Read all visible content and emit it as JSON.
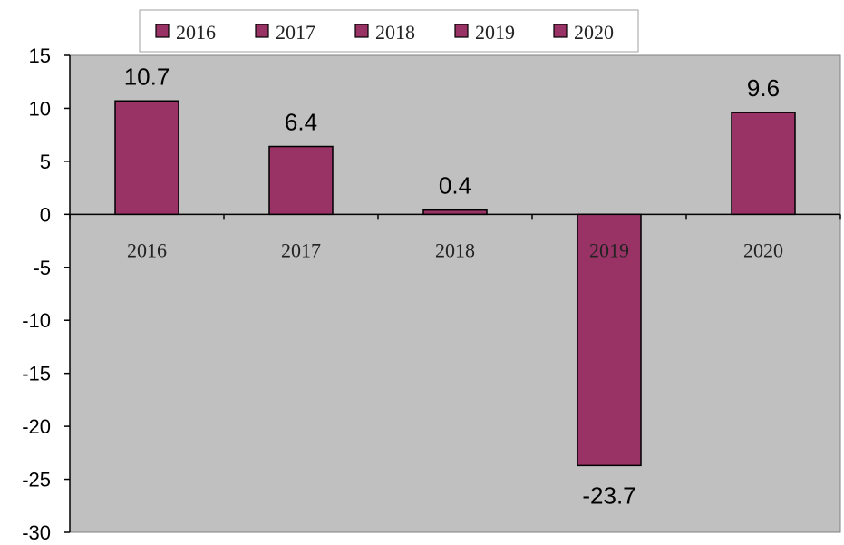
{
  "chart_data": {
    "type": "bar",
    "categories": [
      "2016",
      "2017",
      "2018",
      "2019",
      "2020"
    ],
    "values": [
      10.7,
      6.4,
      0.4,
      -23.7,
      9.6
    ],
    "data_labels": [
      "10.7",
      "6.4",
      "0.4",
      "-23.7",
      "9.6"
    ],
    "legend": [
      "2016",
      "2017",
      "2018",
      "2019",
      "2020"
    ],
    "legend_position": "top",
    "title": "",
    "xlabel": "",
    "ylabel": "",
    "ylim": [
      -30,
      15
    ],
    "yticks": [
      15,
      10,
      5,
      0,
      -5,
      -10,
      -15,
      -20,
      -25,
      -30
    ],
    "grid": false,
    "colors": {
      "bar": "#993366",
      "plot_background": "#c0c0c0",
      "axis": "#000000"
    }
  }
}
